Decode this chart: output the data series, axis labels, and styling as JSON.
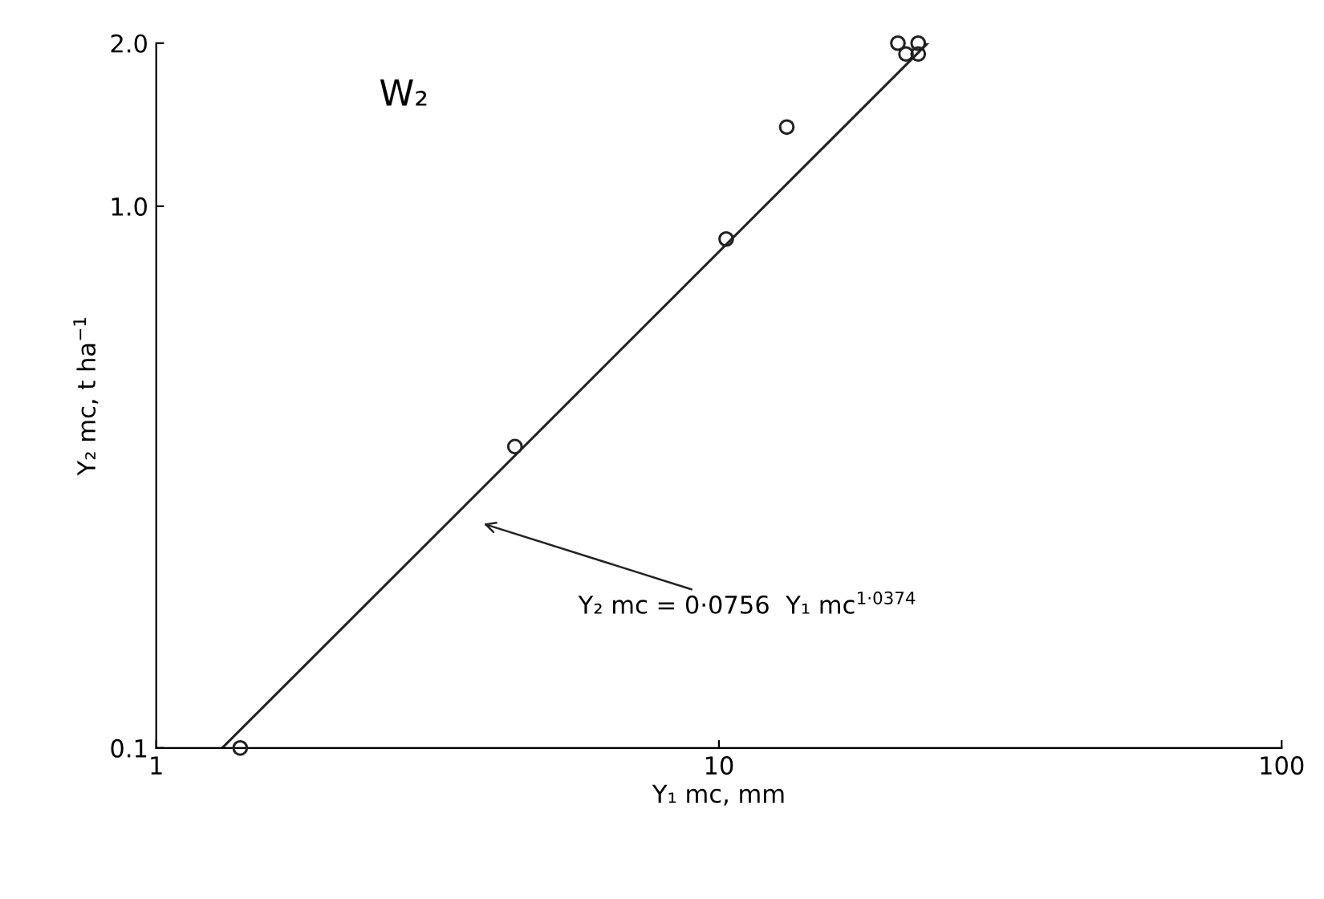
{
  "chart_data": {
    "type": "scatter",
    "title": "W₂",
    "xlabel": "Y₁ mc, mm",
    "ylabel": "Y₂ mc, t ha$^{−1}$",
    "log": "xy",
    "xlim": [
      1,
      100
    ],
    "ylim": [
      0.1,
      2.0
    ],
    "xticks": [
      1,
      10,
      100
    ],
    "yticks": [
      {
        "value": 0.1,
        "label": "0.1"
      },
      {
        "value": 1.0,
        "label": "1.0"
      },
      {
        "value": 2.0,
        "label": "2.0"
      }
    ],
    "grid": false,
    "marker": "circle",
    "series": [
      {
        "color": "#222222",
        "x": [
          1.41,
          4.34,
          10.3,
          13.2,
          20.8,
          22.6,
          21.5,
          22.6
        ],
        "values": [
          0.1,
          0.36,
          0.87,
          1.4,
          2.0,
          2.0,
          1.91,
          1.91
        ]
      },
      {
        "type": "line",
        "color": "#222222",
        "line_style": "solid",
        "marker": "none",
        "x": [
          1.31,
          23.5
        ],
        "values": [
          0.1,
          2.0
        ]
      }
    ],
    "annotations": [
      "Y₂ mc = 0·0756  Y₁ mc$^{1·0374}$"
    ]
  }
}
